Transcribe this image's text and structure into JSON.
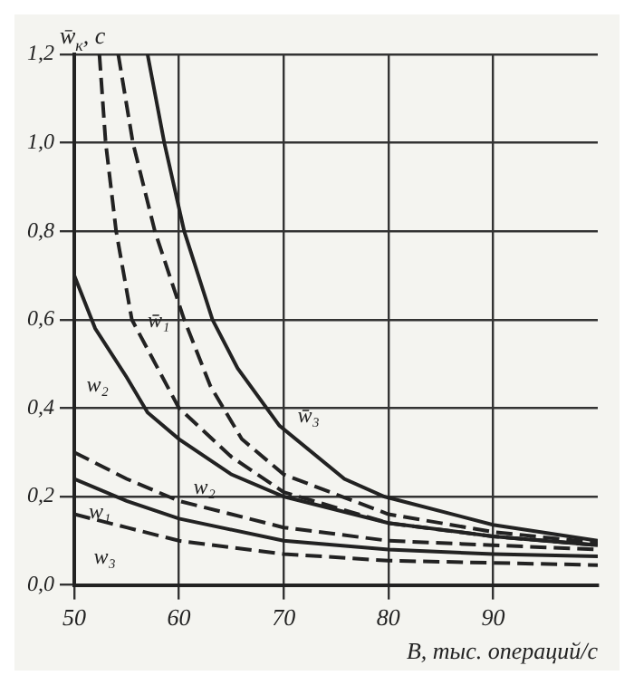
{
  "chart_data": {
    "type": "line",
    "xlabel": "B, тыс. операций/с",
    "ylabel": "w̄$_{к}$, с",
    "xlim": [
      50,
      100
    ],
    "xticks": [
      50,
      60,
      70,
      80,
      90
    ],
    "ylim": [
      0,
      1.2
    ],
    "yticks": [
      {
        "value": 0,
        "label": "0,0"
      },
      {
        "value": 0.2,
        "label": "0,2"
      },
      {
        "value": 0.4,
        "label": "0,4"
      },
      {
        "value": 0.6,
        "label": "0,6"
      },
      {
        "value": 0.8,
        "label": "0,8"
      },
      {
        "value": 1.0,
        "label": "1,0"
      },
      {
        "value": 1.2,
        "label": "1,2"
      }
    ],
    "grid": true,
    "legend": false,
    "marker": "none",
    "series": [
      {
        "color": "#222222",
        "line_style": "dashed",
        "x": [
          52.4,
          53,
          54,
          55.5,
          60,
          65,
          70,
          80,
          90,
          100
        ],
        "values": [
          1.2,
          1.0,
          0.8,
          0.6,
          0.4,
          0.29,
          0.21,
          0.14,
          0.11,
          0.09
        ]
      },
      {
        "name": "w̄₁",
        "color": "#222222",
        "line_style": "dashed",
        "x": [
          54.2,
          55.6,
          57.7,
          60.5,
          63,
          66,
          70,
          80,
          90,
          100
        ],
        "values": [
          1.2,
          1.0,
          0.8,
          0.6,
          0.45,
          0.33,
          0.25,
          0.16,
          0.12,
          0.095
        ]
      },
      {
        "name": "w̄₃",
        "color": "#222222",
        "line_style": "solid",
        "x": [
          57,
          58.6,
          60.5,
          63.2,
          65.6,
          69.6,
          75.8,
          79.6,
          90,
          100
        ],
        "values": [
          1.2,
          1.0,
          0.8,
          0.6,
          0.49,
          0.36,
          0.24,
          0.2,
          0.136,
          0.1
        ]
      },
      {
        "name": "w₂",
        "color": "#222222",
        "line_style": "solid",
        "x": [
          50,
          52,
          55,
          57,
          60,
          65,
          70,
          80,
          90,
          100
        ],
        "values": [
          0.7,
          0.58,
          0.47,
          0.39,
          0.33,
          0.25,
          0.2,
          0.14,
          0.11,
          0.09
        ]
      },
      {
        "name": "w₂",
        "color": "#222222",
        "line_style": "dashed",
        "x": [
          50,
          55,
          60,
          70,
          80,
          90,
          100
        ],
        "values": [
          0.3,
          0.24,
          0.19,
          0.13,
          0.1,
          0.09,
          0.08
        ]
      },
      {
        "name": "w₁",
        "color": "#222222",
        "line_style": "solid",
        "x": [
          50,
          55,
          60,
          70,
          80,
          90,
          100
        ],
        "values": [
          0.24,
          0.19,
          0.15,
          0.1,
          0.08,
          0.07,
          0.065
        ]
      },
      {
        "name": "w₃",
        "color": "#222222",
        "line_style": "dashed",
        "x": [
          50,
          55,
          60,
          70,
          80,
          90,
          100
        ],
        "values": [
          0.16,
          0.13,
          0.1,
          0.07,
          0.055,
          0.05,
          0.045
        ]
      }
    ]
  }
}
